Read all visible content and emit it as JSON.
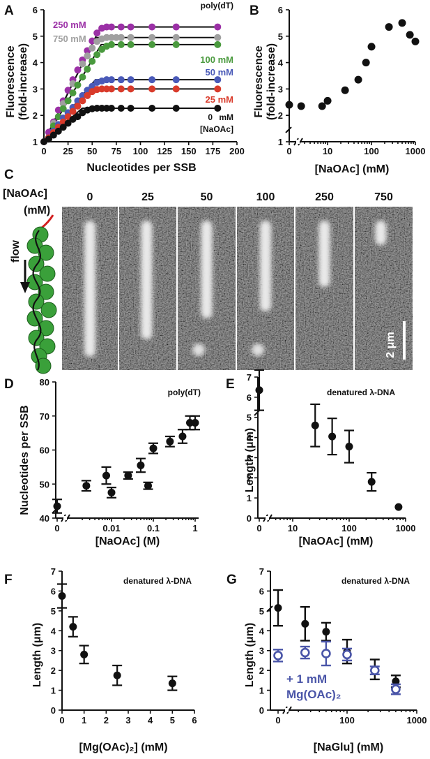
{
  "panels": {
    "A": {
      "letter": "A",
      "annotation": "poly(dT)",
      "xlabel": "Nucleotides per SSB",
      "ylabel_lines": [
        "Fluorescence",
        "(fold-increase)"
      ],
      "unit_label": "mM",
      "salt_label": "[NaOAc]",
      "xticks": [
        "0",
        "25",
        "50",
        "75",
        "100",
        "125",
        "150",
        "175",
        "200"
      ],
      "yticks": [
        "1",
        "2",
        "3",
        "4",
        "5",
        "6"
      ]
    },
    "B": {
      "letter": "B",
      "xlabel": "[NaOAc] (mM)",
      "ylabel_lines": [
        "Fluorescence",
        "(fold-increase)"
      ],
      "xticks": [
        "0",
        "10",
        "100",
        "1000"
      ],
      "yticks": [
        "1",
        "2",
        "3",
        "4",
        "5",
        "6"
      ]
    },
    "C": {
      "letter": "C",
      "header_lines": [
        "[NaOAc]",
        "(mM)"
      ],
      "concentrations": [
        "0",
        "25",
        "50",
        "100",
        "250",
        "750"
      ],
      "flow_label": "flow",
      "scale_label": "2 μm"
    },
    "D": {
      "letter": "D",
      "annotation": "poly(dT)",
      "xlabel": "[NaOAc] (M)",
      "ylabel": "Nucleotides per SSB",
      "xticks": [
        "0",
        "0.01",
        "0.1",
        "1"
      ],
      "yticks": [
        "40",
        "50",
        "60",
        "70",
        "80"
      ]
    },
    "E": {
      "letter": "E",
      "annotation": "denatured λ-DNA",
      "xlabel": "[NaOAc] (mM)",
      "ylabel": "Length (μm)",
      "xticks": [
        "0",
        "10",
        "100",
        "1000"
      ],
      "yticks": [
        "0",
        "1",
        "2",
        "3",
        "4",
        "5",
        "6",
        "7"
      ]
    },
    "F": {
      "letter": "F",
      "annotation": "denatured λ-DNA",
      "xlabel": "[Mg(OAc)₂] (mM)",
      "ylabel": "Length (μm)",
      "xticks": [
        "0",
        "1",
        "2",
        "3",
        "4",
        "5",
        "6"
      ],
      "yticks": [
        "0",
        "1",
        "2",
        "3",
        "4",
        "5",
        "6",
        "7"
      ]
    },
    "G": {
      "letter": "G",
      "annotation": "denatured λ-DNA",
      "xlabel": "[NaGlu] (mM)",
      "ylabel": "Length (μm)",
      "legend_lines": [
        "+ 1 mM",
        "Mg(OAc)₂"
      ],
      "xticks": [
        "0",
        "100",
        "1000"
      ],
      "yticks": [
        "0",
        "1",
        "2",
        "3",
        "4",
        "5",
        "6",
        "7"
      ]
    }
  },
  "chart_data": [
    {
      "panel": "A",
      "type": "line",
      "xlabel": "Nucleotides per SSB",
      "ylabel": "Fluorescence (fold-increase)",
      "xlim": [
        0,
        200
      ],
      "ylim": [
        1,
        6
      ],
      "series": [
        {
          "name": "250 mM",
          "color": "#9b30a6",
          "plateau": 5.35,
          "slope": 0.074,
          "x": [
            0,
            5,
            10,
            15,
            20,
            25,
            30,
            35,
            40,
            45,
            50,
            55,
            60,
            65,
            70,
            80,
            90,
            112,
            137,
            180
          ],
          "y": [
            1.0,
            1.36,
            1.75,
            2.2,
            2.55,
            2.95,
            3.35,
            3.72,
            4.1,
            4.45,
            4.82,
            5.12,
            5.3,
            5.35,
            5.35,
            5.35,
            5.35,
            5.35,
            5.35,
            5.35
          ]
        },
        {
          "name": "750 mM",
          "color": "#a0a0a0",
          "plateau": 4.95,
          "slope": 0.074,
          "x": [
            0,
            10,
            20,
            30,
            40,
            45,
            50,
            55,
            60,
            65,
            70,
            75,
            80,
            90,
            112,
            137,
            180
          ],
          "y": [
            1.0,
            1.7,
            2.45,
            3.2,
            3.95,
            4.25,
            4.55,
            4.8,
            4.9,
            4.95,
            4.95,
            4.95,
            4.95,
            4.95,
            4.95,
            4.95,
            4.95
          ]
        },
        {
          "name": "100 mM",
          "color": "#4a9a3e",
          "plateau": 4.68,
          "slope": 0.062,
          "x": [
            5,
            10,
            15,
            20,
            25,
            30,
            35,
            40,
            45,
            50,
            55,
            60,
            65,
            70,
            80,
            90,
            112,
            137,
            180
          ],
          "y": [
            1.15,
            1.6,
            1.95,
            2.25,
            2.55,
            2.85,
            3.15,
            3.45,
            3.75,
            4.05,
            4.3,
            4.5,
            4.62,
            4.68,
            4.68,
            4.68,
            4.68,
            4.68,
            4.68
          ]
        },
        {
          "name": "50 mM",
          "color": "#4a5ab8",
          "plateau": 3.35,
          "slope": 0.044,
          "x": [
            5,
            10,
            15,
            20,
            25,
            30,
            35,
            40,
            45,
            50,
            55,
            60,
            65,
            70,
            80,
            90,
            112,
            137,
            180
          ],
          "y": [
            1.15,
            1.4,
            1.65,
            1.9,
            2.1,
            2.3,
            2.55,
            2.75,
            2.95,
            3.1,
            3.25,
            3.3,
            3.35,
            3.35,
            3.35,
            3.35,
            3.35,
            3.35,
            3.35
          ]
        },
        {
          "name": "25 mM",
          "color": "#d93b2b",
          "plateau": 3.0,
          "slope": 0.04,
          "x": [
            5,
            10,
            15,
            20,
            25,
            30,
            35,
            40,
            45,
            50,
            55,
            60,
            65,
            70,
            80,
            90,
            112,
            137,
            180
          ],
          "y": [
            1.15,
            1.35,
            1.55,
            1.75,
            1.95,
            2.15,
            2.35,
            2.55,
            2.75,
            2.9,
            2.98,
            3.0,
            3.0,
            3.0,
            3.0,
            3.0,
            3.0,
            3.0,
            3.0
          ]
        },
        {
          "name": "0 mM",
          "color": "#111111",
          "plateau": 2.27,
          "slope": 0.032,
          "x": [
            0,
            5,
            10,
            15,
            20,
            25,
            30,
            35,
            40,
            45,
            50,
            55,
            60,
            65,
            70,
            80,
            90,
            112,
            137,
            180
          ],
          "y": [
            1.0,
            1.1,
            1.25,
            1.4,
            1.55,
            1.7,
            1.85,
            1.95,
            2.1,
            2.2,
            2.25,
            2.27,
            2.27,
            2.27,
            2.27,
            2.27,
            2.27,
            2.27,
            2.27,
            2.27
          ]
        }
      ]
    },
    {
      "panel": "B",
      "type": "scatter",
      "xlabel": "[NaOAc] (mM)",
      "ylabel": "Fluorescence (fold-increase)",
      "xscale": "log",
      "ylim": [
        1,
        6
      ],
      "x": [
        0,
        2.5,
        7.5,
        10,
        25,
        50,
        75,
        100,
        250,
        500,
        750,
        1000
      ],
      "y": [
        2.4,
        2.35,
        2.35,
        2.55,
        2.95,
        3.35,
        4.0,
        4.6,
        5.35,
        5.5,
        5.05,
        4.8
      ]
    },
    {
      "panel": "D",
      "type": "scatter",
      "xlabel": "[NaOAc] (M)",
      "ylabel": "Nucleotides per SSB",
      "xscale": "log",
      "ylim": [
        40,
        80
      ],
      "x": [
        0,
        0.0025,
        0.0075,
        0.01,
        0.025,
        0.05,
        0.075,
        0.1,
        0.25,
        0.5,
        0.75,
        1.0
      ],
      "y": [
        43.5,
        49.5,
        52.5,
        47.5,
        52.5,
        55.5,
        49.5,
        60.5,
        62.5,
        64.0,
        68.0,
        68.0
      ],
      "err": [
        2.0,
        1.5,
        2.5,
        1.5,
        1.0,
        2.0,
        1.0,
        1.5,
        1.5,
        2.0,
        2.0,
        2.0
      ]
    },
    {
      "panel": "E",
      "type": "scatter",
      "xlabel": "[NaOAc] (mM)",
      "ylabel": "Length (μm)",
      "xscale": "log",
      "ylim": [
        0,
        7
      ],
      "x": [
        0,
        25,
        50,
        100,
        250,
        750
      ],
      "y": [
        6.35,
        4.6,
        4.05,
        3.55,
        1.8,
        0.55
      ],
      "err": [
        1.0,
        1.05,
        0.9,
        0.8,
        0.45,
        0.0
      ]
    },
    {
      "panel": "F",
      "type": "scatter",
      "xlabel": "[Mg(OAc)₂] (mM)",
      "ylabel": "Length (μm)",
      "xlim": [
        0,
        6
      ],
      "ylim": [
        0,
        7
      ],
      "x": [
        0,
        0.5,
        1.0,
        2.5,
        5.0
      ],
      "y": [
        5.75,
        4.2,
        2.8,
        1.75,
        1.35
      ],
      "err": [
        0.6,
        0.5,
        0.45,
        0.5,
        0.35
      ]
    },
    {
      "panel": "G",
      "type": "scatter",
      "xlabel": "[NaGlu] (mM)",
      "ylabel": "Length (μm)",
      "xscale": "log",
      "ylim": [
        0,
        7
      ],
      "series": [
        {
          "name": "",
          "style": "filled",
          "color": "#111111",
          "x": [
            0,
            25,
            50,
            100,
            250,
            500
          ],
          "y": [
            5.15,
            4.35,
            3.95,
            2.95,
            2.05,
            1.45
          ],
          "err": [
            0.9,
            0.85,
            0.45,
            0.6,
            0.5,
            0.3
          ]
        },
        {
          "name": "+ 1 mM Mg(OAc)₂",
          "style": "open",
          "color": "#4a55a8",
          "x": [
            0,
            25,
            50,
            100,
            250,
            500
          ],
          "y": [
            2.75,
            2.9,
            2.85,
            2.8,
            2.0,
            1.05
          ],
          "err": [
            0.3,
            0.3,
            0.6,
            0.3,
            0.2,
            0.25
          ]
        }
      ]
    }
  ],
  "colors": {
    "axis": "#111111",
    "series_250": "#9b30a6",
    "series_750": "#a0a0a0",
    "series_100": "#4a9a3e",
    "series_50": "#4a5ab8",
    "series_25": "#d93b2b",
    "series_0": "#111111",
    "mg_series": "#4a55a8",
    "ssb_green": "#3aa03a",
    "dna_red": "#d21f1f"
  }
}
